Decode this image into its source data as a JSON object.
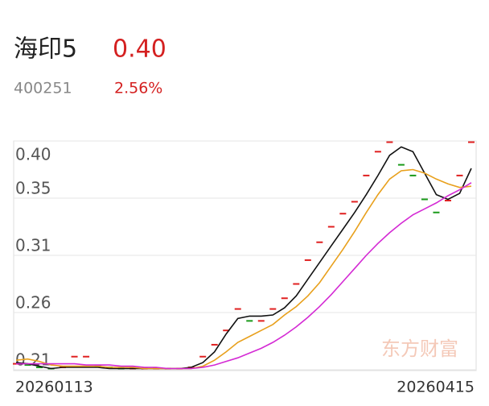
{
  "header": {
    "name": "海印5",
    "price": "0.40",
    "code": "400251",
    "change": "2.56%"
  },
  "chart_data": {
    "type": "line",
    "watermark": "东方财富",
    "categories": [
      "20260113",
      null,
      null,
      null,
      null,
      null,
      null,
      null,
      null,
      null,
      null,
      null,
      null,
      null,
      null,
      null,
      null,
      null,
      null,
      null,
      null,
      null,
      null,
      null,
      null,
      null,
      null,
      null,
      null,
      null,
      null,
      null,
      null,
      null,
      null,
      null,
      null,
      null,
      null,
      "20260415"
    ],
    "values": [
      0.215,
      0.214,
      0.212,
      0.211,
      0.212,
      0.221,
      0.221,
      0.213,
      0.212,
      0.211,
      0.211,
      0.211,
      0.211,
      0.211,
      0.211,
      0.212,
      0.221,
      0.231,
      0.243,
      0.261,
      0.251,
      0.251,
      0.261,
      0.27,
      0.282,
      0.302,
      0.317,
      0.33,
      0.341,
      0.351,
      0.373,
      0.393,
      0.401,
      0.382,
      0.373,
      0.353,
      0.342,
      0.352,
      0.373,
      0.401
    ],
    "up_color": "#e02020",
    "down_color": "#1a9a1a",
    "series": [
      {
        "color": "#111111",
        "values": [
          0.216,
          0.215,
          0.213,
          0.211,
          0.212,
          0.212,
          0.212,
          0.212,
          0.211,
          0.211,
          0.211,
          0.211,
          0.211,
          0.211,
          0.211,
          0.212,
          0.216,
          0.225,
          0.24,
          0.253,
          0.255,
          0.255,
          0.256,
          0.262,
          0.272,
          0.286,
          0.3,
          0.314,
          0.328,
          0.342,
          0.357,
          0.373,
          0.39,
          0.397,
          0.393,
          0.375,
          0.357,
          0.353,
          0.358,
          0.379
        ]
      },
      {
        "color": "#e8a01c",
        "values": [
          0.218,
          0.219,
          0.217,
          0.214,
          0.213,
          0.213,
          0.213,
          0.213,
          0.212,
          0.212,
          0.212,
          0.211,
          0.211,
          0.211,
          0.211,
          0.211,
          0.213,
          0.218,
          0.225,
          0.233,
          0.238,
          0.243,
          0.248,
          0.256,
          0.263,
          0.272,
          0.283,
          0.297,
          0.311,
          0.326,
          0.342,
          0.357,
          0.37,
          0.377,
          0.378,
          0.375,
          0.37,
          0.366,
          0.363,
          0.364
        ]
      },
      {
        "color": "#d42ad4",
        "values": [
          0.215,
          0.215,
          0.215,
          0.215,
          0.215,
          0.215,
          0.214,
          0.214,
          0.214,
          0.213,
          0.213,
          0.212,
          0.212,
          0.211,
          0.211,
          0.211,
          0.212,
          0.214,
          0.217,
          0.22,
          0.224,
          0.228,
          0.233,
          0.239,
          0.246,
          0.254,
          0.263,
          0.273,
          0.284,
          0.295,
          0.306,
          0.316,
          0.325,
          0.333,
          0.34,
          0.345,
          0.35,
          0.356,
          0.361,
          0.367
        ]
      }
    ],
    "ylim": [
      0.21,
      0.402
    ],
    "yticks": [
      {
        "value": 0.21,
        "label": "0.21"
      },
      {
        "value": 0.258,
        "label": "0.26"
      },
      {
        "value": 0.306,
        "label": "0.31"
      },
      {
        "value": 0.354,
        "label": "0.35"
      },
      {
        "value": 0.402,
        "label": "0.40"
      }
    ],
    "grid": true
  }
}
